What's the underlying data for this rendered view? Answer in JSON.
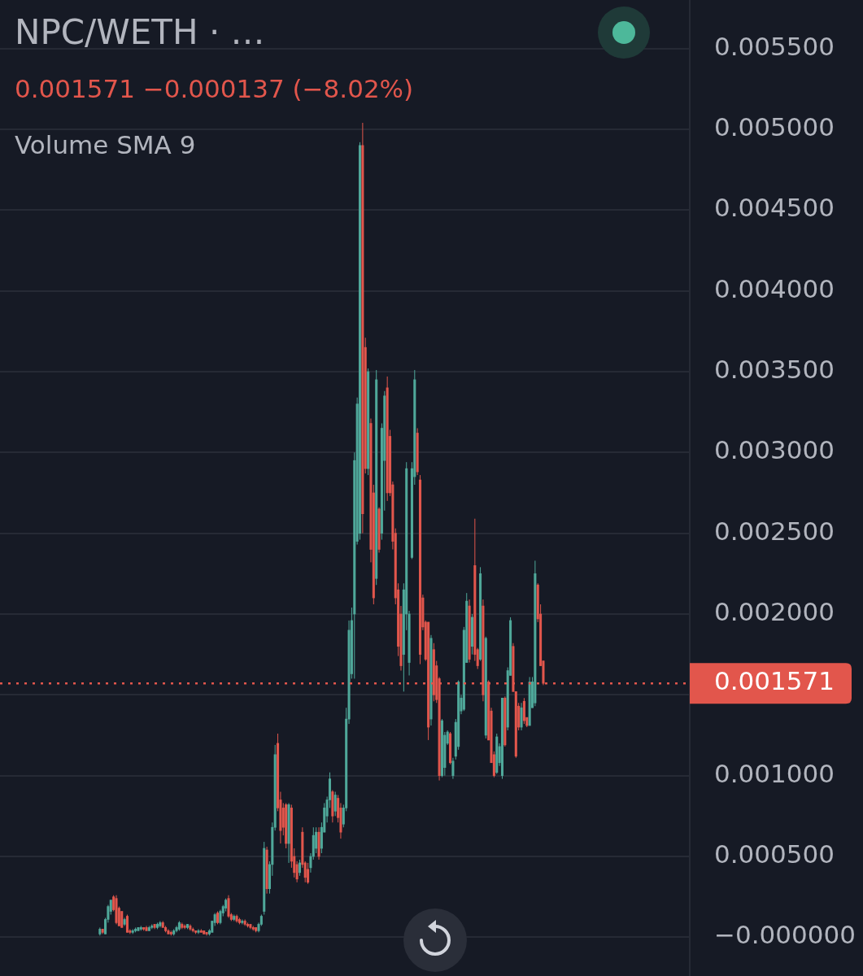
{
  "chart_data": {
    "type": "candlestick",
    "title": "NPC/WETH · …",
    "subtitle": "0.001571 −0.000137 (−8.02%)",
    "annotations": [
      "Volume SMA 9"
    ],
    "categories": [
      null,
      null,
      null,
      null,
      null,
      null,
      null,
      null,
      null,
      null,
      null,
      null,
      null,
      null,
      null,
      null,
      null,
      null,
      null,
      null,
      null,
      null,
      null,
      null,
      null,
      null,
      null,
      null,
      null,
      null,
      null,
      null,
      null,
      null,
      null,
      null,
      null,
      null,
      null,
      null,
      null,
      null,
      null,
      null,
      null,
      null,
      null,
      null,
      null,
      null,
      null,
      null,
      null,
      null,
      null,
      null,
      null,
      null,
      null,
      null,
      null,
      null,
      null,
      null,
      null,
      null,
      null,
      null,
      null,
      null,
      null,
      null,
      null,
      null,
      null,
      null,
      null,
      null,
      null,
      null,
      null,
      null,
      null,
      null,
      null,
      null,
      null,
      null,
      null,
      null,
      null,
      null,
      null,
      null,
      null,
      null,
      null,
      null,
      null,
      null,
      null,
      null,
      null,
      null,
      null,
      null,
      null,
      null,
      null,
      null,
      null,
      null,
      null,
      null,
      null,
      null,
      null,
      null,
      null,
      null,
      null,
      null,
      null,
      null,
      null,
      null,
      null,
      null,
      null,
      null,
      null,
      null,
      null,
      null,
      null,
      null,
      null,
      null,
      null,
      null,
      null,
      null,
      null,
      null,
      null,
      null,
      null,
      null,
      null,
      null,
      null,
      null,
      null,
      null,
      null,
      null,
      null,
      null,
      null,
      null,
      null,
      null,
      null,
      null,
      null,
      null,
      null,
      null,
      null,
      null,
      null,
      null,
      null,
      null,
      null,
      null,
      null,
      null,
      null,
      null,
      null,
      null,
      null,
      null,
      null,
      null,
      null,
      null,
      null,
      null,
      null,
      null,
      null,
      null,
      null,
      null,
      null,
      null,
      null,
      null,
      null,
      null,
      null,
      null,
      null,
      null,
      null,
      null,
      null,
      null,
      null,
      null,
      null,
      null,
      null,
      null,
      null,
      null,
      null,
      null,
      null,
      null,
      null,
      null,
      null,
      null,
      null,
      null,
      null,
      null,
      null,
      null,
      null,
      null,
      null,
      null,
      null,
      null,
      null,
      null,
      null,
      null,
      null,
      null,
      null,
      null,
      null,
      null,
      null,
      null,
      null,
      null
    ],
    "ohlc": [
      null,
      null,
      null,
      null,
      null,
      null,
      null,
      null,
      null,
      null,
      null,
      null,
      null,
      null,
      null,
      null,
      null,
      null,
      null,
      null,
      null,
      null,
      null,
      null,
      null,
      null,
      null,
      null,
      null,
      null,
      null,
      null,
      null,
      null,
      null,
      null,
      [
        2e-05,
        6e-05,
        1e-05,
        5e-05
      ],
      [
        5e-05,
        5e-05,
        2e-05,
        3e-05
      ],
      [
        2e-05,
        0.00012,
        2e-05,
        0.00011
      ],
      [
        0.00011,
        0.0002,
        9e-05,
        0.00019
      ],
      [
        0.00016,
        0.00023,
        0.00014,
        0.00023
      ],
      [
        0.00025,
        0.00026,
        0.00016,
        0.00017
      ],
      [
        0.00024,
        0.00026,
        8e-05,
        9e-05
      ],
      [
        0.00018,
        0.00019,
        7e-05,
        7e-05
      ],
      [
        0.00016,
        0.00016,
        6e-05,
        6e-05
      ],
      [
        8e-05,
        0.00012,
        7e-05,
        0.00011
      ],
      [
        0.00013,
        0.00014,
        3e-05,
        3e-05
      ],
      [
        4e-05,
        5e-05,
        2e-05,
        3e-05
      ],
      [
        3e-05,
        5e-05,
        2e-05,
        4e-05
      ],
      [
        4e-05,
        6e-05,
        3e-05,
        5e-05
      ],
      [
        4e-05,
        6e-05,
        4e-05,
        6e-05
      ],
      [
        5e-05,
        7e-05,
        4e-05,
        6e-05
      ],
      [
        6e-05,
        6e-05,
        4e-05,
        5e-05
      ],
      [
        6e-05,
        7e-05,
        4e-05,
        4e-05
      ],
      [
        4e-05,
        7e-05,
        4e-05,
        6e-05
      ],
      [
        6e-05,
        8e-05,
        5e-05,
        7e-05
      ],
      [
        8e-05,
        8e-05,
        5e-05,
        6e-05
      ],
      [
        6e-05,
        9e-05,
        5e-05,
        8e-05
      ],
      [
        7e-05,
        0.0001,
        6e-05,
        9e-05
      ],
      [
        9e-05,
        0.0001,
        6e-05,
        6e-05
      ],
      [
        6e-05,
        7e-05,
        3e-05,
        4e-05
      ],
      [
        4e-05,
        5e-05,
        2e-05,
        2e-05
      ],
      [
        3e-05,
        4e-05,
        1e-05,
        2e-05
      ],
      [
        2e-05,
        5e-05,
        1e-05,
        4e-05
      ],
      [
        4e-05,
        7e-05,
        3e-05,
        6e-05
      ],
      [
        5e-05,
        0.0001,
        4e-05,
        9e-05
      ],
      [
        8e-05,
        9e-05,
        5e-05,
        6e-05
      ],
      [
        7e-05,
        8e-05,
        5e-05,
        6e-05
      ],
      [
        6e-05,
        8e-05,
        5e-05,
        8e-05
      ],
      [
        7e-05,
        8e-05,
        4e-05,
        5e-05
      ],
      [
        5e-05,
        6e-05,
        3e-05,
        4e-05
      ],
      [
        4e-05,
        4e-05,
        2e-05,
        3e-05
      ],
      [
        3e-05,
        5e-05,
        2e-05,
        4e-05
      ],
      [
        4e-05,
        5e-05,
        3e-05,
        3e-05
      ],
      [
        4e-05,
        4e-05,
        2e-05,
        2e-05
      ],
      [
        3e-05,
        3e-05,
        1e-05,
        2e-05
      ],
      [
        2e-05,
        5e-05,
        1e-05,
        4e-05
      ],
      [
        3e-05,
        0.0001,
        3e-05,
        0.0001
      ],
      [
        9e-05,
        0.00015,
        7e-05,
        0.00014
      ],
      [
        0.00015,
        0.00016,
        8e-05,
        9e-05
      ],
      [
        9e-05,
        0.00017,
        8e-05,
        0.00016
      ],
      [
        0.00015,
        0.0002,
        0.00013,
        0.00019
      ],
      [
        0.00018,
        0.00024,
        0.00016,
        0.00023
      ],
      [
        0.00024,
        0.00026,
        0.00012,
        0.00013
      ],
      [
        0.00014,
        0.00015,
        0.0001,
        0.00011
      ],
      [
        0.00011,
        0.00014,
        0.0001,
        0.00013
      ],
      [
        0.00013,
        0.00014,
        9e-05,
        0.0001
      ],
      [
        0.00011,
        0.00012,
        8e-05,
        9e-05
      ],
      [
        9e-05,
        0.00011,
        8e-05,
        0.0001
      ],
      [
        0.0001,
        0.00011,
        7e-05,
        8e-05
      ],
      [
        8e-05,
        9e-05,
        6e-05,
        7e-05
      ],
      [
        8e-05,
        8e-05,
        5e-05,
        6e-05
      ],
      [
        6e-05,
        7e-05,
        4e-05,
        5e-05
      ],
      [
        6e-05,
        6e-05,
        3e-05,
        4e-05
      ],
      [
        4e-05,
        9e-05,
        3e-05,
        8e-05
      ],
      [
        8e-05,
        0.00014,
        7e-05,
        0.00013
      ],
      [
        0.00016,
        0.00059,
        0.00014,
        0.00055
      ],
      [
        0.00054,
        0.00056,
        0.00027,
        0.0003
      ],
      [
        0.0003,
        0.00047,
        0.00027,
        0.00045
      ],
      [
        0.00045,
        0.00071,
        0.00038,
        0.00068
      ],
      [
        0.00068,
        0.00119,
        0.00066,
        0.00113
      ],
      [
        0.0012,
        0.00126,
        0.00078,
        0.0008
      ],
      [
        0.00085,
        0.0009,
        0.00058,
        0.00066
      ],
      [
        0.0008,
        0.00083,
        0.00063,
        0.00068
      ],
      [
        0.00082,
        0.00083,
        0.00055,
        0.00058
      ],
      [
        0.00058,
        0.00083,
        0.00046,
        0.00082
      ],
      [
        0.0008,
        0.00082,
        0.00043,
        0.00047
      ],
      [
        0.0005,
        0.00055,
        0.00037,
        0.0004
      ],
      [
        0.00045,
        0.00047,
        0.00034,
        0.00036
      ],
      [
        0.0004,
        0.00048,
        0.00038,
        0.00046
      ],
      [
        0.00065,
        0.00068,
        0.00043,
        0.00045
      ],
      [
        0.00046,
        0.00047,
        0.00034,
        0.00037
      ],
      [
        0.00042,
        0.00046,
        0.00033,
        0.00034
      ],
      [
        0.00043,
        0.00052,
        0.0004,
        0.0005
      ],
      [
        0.0005,
        0.00068,
        0.00048,
        0.00063
      ],
      [
        0.00055,
        0.00068,
        0.00052,
        0.00065
      ],
      [
        0.00065,
        0.00068,
        0.00048,
        0.0005
      ],
      [
        0.00055,
        0.00071,
        0.00052,
        0.00068
      ],
      [
        0.00065,
        0.00083,
        0.00065,
        0.0008
      ],
      [
        0.00075,
        0.00087,
        0.00071,
        0.00085
      ],
      [
        0.00085,
        0.00102,
        0.0008,
        0.00098
      ],
      [
        0.0009,
        0.00091,
        0.00071,
        0.00075
      ],
      [
        0.00078,
        0.0009,
        0.00075,
        0.00088
      ],
      [
        0.00086,
        0.00088,
        0.00071,
        0.00074
      ],
      [
        0.0008,
        0.00083,
        0.00061,
        0.00065
      ],
      [
        0.0007,
        0.00082,
        0.00068,
        0.0008
      ],
      [
        0.0008,
        0.00142,
        0.00078,
        0.00135
      ],
      [
        0.00135,
        0.00196,
        0.00132,
        0.0019
      ],
      [
        0.00163,
        0.00204,
        0.0016,
        0.00196
      ],
      [
        0.002,
        0.003,
        0.0016,
        0.00295
      ],
      [
        0.00245,
        0.00334,
        0.00243,
        0.0033
      ],
      [
        0.0025,
        0.00492,
        0.00246,
        0.0049
      ],
      [
        0.0049,
        0.00504,
        0.0025,
        0.00262
      ],
      [
        0.00365,
        0.00371,
        0.00287,
        0.0029
      ],
      [
        0.0029,
        0.00352,
        0.00286,
        0.0035
      ],
      [
        0.00318,
        0.00321,
        0.00232,
        0.0024
      ],
      [
        0.00275,
        0.0028,
        0.00206,
        0.0021
      ],
      [
        0.00222,
        0.00351,
        0.00218,
        0.00345
      ],
      [
        0.00265,
        0.00266,
        0.00238,
        0.0024
      ],
      [
        0.0025,
        0.00318,
        0.00246,
        0.00315
      ],
      [
        0.00295,
        0.00338,
        0.00264,
        0.00335
      ],
      [
        0.0034,
        0.00347,
        0.0027,
        0.00275
      ],
      [
        0.0031,
        0.00314,
        0.00273,
        0.00275
      ],
      [
        0.0028,
        0.00282,
        0.0024,
        0.00245
      ],
      [
        0.0025,
        0.00253,
        0.00206,
        0.0021
      ],
      [
        0.00215,
        0.00219,
        0.00174,
        0.0018
      ],
      [
        0.002,
        0.00205,
        0.00165,
        0.00168
      ],
      [
        0.00175,
        0.00219,
        0.00152,
        0.00215
      ],
      [
        0.002,
        0.00294,
        0.0019,
        0.0029
      ],
      [
        0.0017,
        0.00202,
        0.00162,
        0.002
      ],
      [
        0.00235,
        0.00294,
        0.00234,
        0.0029
      ],
      [
        0.00285,
        0.00351,
        0.0028,
        0.00345
      ],
      [
        0.00312,
        0.00315,
        0.00286,
        0.00288
      ],
      [
        0.00283,
        0.00286,
        0.00169,
        0.00175
      ],
      [
        0.0021,
        0.00212,
        0.0019,
        0.00192
      ],
      [
        0.00195,
        0.00196,
        0.00171,
        0.00172
      ],
      [
        0.00195,
        0.00195,
        0.00122,
        0.0013
      ],
      [
        0.00135,
        0.00187,
        0.00131,
        0.00185
      ],
      [
        0.00178,
        0.00182,
        0.00146,
        0.0015
      ],
      [
        0.00168,
        0.00171,
        0.00145,
        0.00147
      ],
      [
        0.0016,
        0.00161,
        0.00097,
        0.001
      ],
      [
        0.001,
        0.00135,
        0.00099,
        0.00134
      ],
      [
        0.00105,
        0.00127,
        0.001,
        0.00125
      ],
      [
        0.0012,
        0.00128,
        0.00119,
        0.00127
      ],
      [
        0.00126,
        0.00127,
        0.00107,
        0.00108
      ],
      [
        0.001,
        0.00111,
        0.00098,
        0.00109
      ],
      [
        0.00112,
        0.00135,
        0.0011,
        0.00133
      ],
      [
        0.00118,
        0.00159,
        0.00116,
        0.00158
      ],
      [
        0.0014,
        0.0015,
        0.00138,
        0.00148
      ],
      [
        0.00141,
        0.00192,
        0.0014,
        0.0019
      ],
      [
        0.0017,
        0.00213,
        0.0017,
        0.00208
      ],
      [
        0.00205,
        0.00209,
        0.0017,
        0.00172
      ],
      [
        0.0018,
        0.002,
        0.00175,
        0.00198
      ],
      [
        0.0023,
        0.00259,
        0.00171,
        0.00175
      ],
      [
        0.00178,
        0.00179,
        0.00166,
        0.00168
      ],
      [
        0.00172,
        0.00229,
        0.00171,
        0.00225
      ],
      [
        0.00205,
        0.00209,
        0.00146,
        0.0015
      ],
      [
        0.00125,
        0.00186,
        0.00123,
        0.00185
      ],
      [
        0.00158,
        0.00159,
        0.00122,
        0.00122
      ],
      [
        0.0014,
        0.00142,
        0.00108,
        0.00108
      ],
      [
        0.00113,
        0.00115,
        0.00099,
        0.001
      ],
      [
        0.00102,
        0.00126,
        0.00101,
        0.00124
      ],
      [
        0.00108,
        0.0012,
        0.00106,
        0.00118
      ],
      [
        0.001,
        0.00148,
        0.00098,
        0.00148
      ],
      [
        0.00148,
        0.00149,
        0.00118,
        0.00119
      ],
      [
        0.0013,
        0.00167,
        0.00128,
        0.00165
      ],
      [
        0.00162,
        0.00198,
        0.00162,
        0.00196
      ],
      [
        0.0018,
        0.00182,
        0.00152,
        0.00152
      ],
      [
        0.00152,
        0.00152,
        0.00111,
        0.00112
      ],
      [
        0.00143,
        0.00145,
        0.00128,
        0.0013
      ],
      [
        0.0013,
        0.00145,
        0.00128,
        0.00142
      ],
      [
        0.00146,
        0.00148,
        0.00132,
        0.00134
      ],
      [
        0.00136,
        0.00136,
        0.0013,
        0.00131
      ],
      [
        0.00131,
        0.00161,
        0.00131,
        0.00158
      ],
      [
        0.00142,
        0.00161,
        0.00142,
        0.00158
      ],
      [
        0.00145,
        0.00233,
        0.00143,
        0.00225
      ],
      [
        0.00218,
        0.00219,
        0.00195,
        0.00197
      ],
      [
        0.002,
        0.00206,
        0.00168,
        0.00168
      ],
      [
        0.00171,
        0.00171,
        0.00156,
        0.001571
      ],
      null,
      null,
      null,
      null,
      null,
      null,
      null,
      null,
      null,
      null,
      null,
      null,
      null,
      null,
      null,
      null,
      null,
      null,
      null,
      null,
      null,
      null,
      null,
      null,
      null,
      null,
      null,
      null,
      null,
      null,
      null,
      null,
      null,
      null,
      null,
      null,
      null,
      null,
      null,
      null,
      null,
      null,
      null,
      null,
      null,
      null,
      null,
      null,
      null,
      null,
      null,
      null,
      null
    ],
    "ylim": [
      -0.00024,
      0.0058
    ],
    "yticks": [
      {
        "value": 0,
        "label": "−0.000000"
      },
      {
        "value": 0.0005,
        "label": "0.000500"
      },
      {
        "value": 0.001,
        "label": "0.001000"
      },
      {
        "value": 0.0015,
        "label": null
      },
      {
        "value": 0.002,
        "label": "0.002000"
      },
      {
        "value": 0.0025,
        "label": "0.002500"
      },
      {
        "value": 0.003,
        "label": "0.003000"
      },
      {
        "value": 0.0035,
        "label": "0.003500"
      },
      {
        "value": 0.004,
        "label": "0.004000"
      },
      {
        "value": 0.0045,
        "label": "0.004500"
      },
      {
        "value": 0.005,
        "label": "0.005000"
      },
      {
        "value": 0.0055,
        "label": "0.005500"
      }
    ],
    "grid": "y",
    "tick_labels": "y",
    "ref_lines": [
      {
        "axis": "y",
        "value": 0.001571,
        "label": "0.001571",
        "color": "#e2564c",
        "line_style": "dotted"
      }
    ]
  }
}
